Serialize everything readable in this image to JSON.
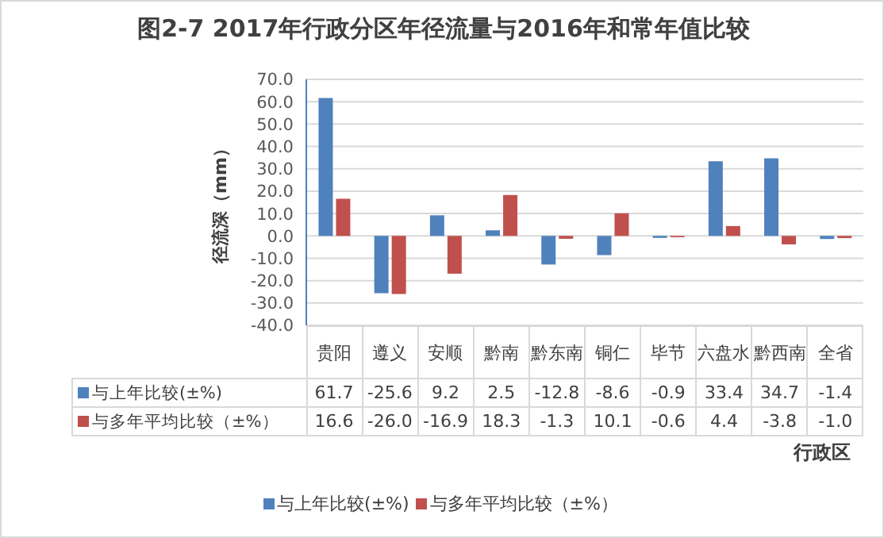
{
  "chart_data": {
    "type": "bar",
    "title": "图2-7 2017年行政分区年径流量与2016年和常年值比较",
    "ylabel": "径流深（mm）",
    "xlabel": "行政区",
    "categories": [
      "贵阳",
      "遵义",
      "安顺",
      "黔南",
      "黔东南",
      "铜仁",
      "毕节",
      "六盘水",
      "黔西南",
      "全省"
    ],
    "series": [
      {
        "name": "与上年比较(±%)",
        "color": "#4f81bd",
        "values": [
          61.7,
          -25.6,
          9.2,
          2.5,
          -12.8,
          -8.6,
          -0.9,
          33.4,
          34.7,
          -1.4
        ],
        "value_labels": [
          "61.7",
          "-25.6",
          "9.2",
          "2.5",
          "-12.8",
          "-8.6",
          "-0.9",
          "33.4",
          "34.7",
          "-1.4"
        ]
      },
      {
        "name": "与多年平均比较（±%）",
        "color": "#c0504d",
        "values": [
          16.6,
          -26.0,
          -16.9,
          18.3,
          -1.3,
          10.1,
          -0.6,
          4.4,
          -3.8,
          -1.0
        ],
        "value_labels": [
          "16.6",
          "-26.0",
          "-16.9",
          "18.3",
          "-1.3",
          "10.1",
          "-0.6",
          "4.4",
          "-3.8",
          "-1.0"
        ]
      }
    ],
    "ylim": [
      -40,
      70
    ],
    "yticks": [
      {
        "value": -40,
        "label": "-40.0"
      },
      {
        "value": -30,
        "label": "-30.0"
      },
      {
        "value": -20,
        "label": "-20.0"
      },
      {
        "value": -10,
        "label": "-10.0"
      },
      {
        "value": 0,
        "label": "0.0"
      },
      {
        "value": 10,
        "label": "10.0"
      },
      {
        "value": 20,
        "label": "20.0"
      },
      {
        "value": 30,
        "label": "30.0"
      },
      {
        "value": 40,
        "label": "40.0"
      },
      {
        "value": 50,
        "label": "50.0"
      },
      {
        "value": 60,
        "label": "60.0"
      },
      {
        "value": 70,
        "label": "70.0"
      }
    ],
    "grid": "y",
    "legend": "bottom"
  }
}
